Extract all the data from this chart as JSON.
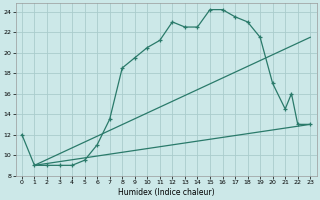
{
  "background_color": "#cce8e8",
  "grid_color": "#aacccc",
  "line_color": "#2a7a6a",
  "xlabel": "Humidex (Indice chaleur)",
  "xlim": [
    -0.5,
    23.5
  ],
  "ylim": [
    8,
    24.8
  ],
  "xticks": [
    0,
    1,
    2,
    3,
    4,
    5,
    6,
    7,
    8,
    9,
    10,
    11,
    12,
    13,
    14,
    15,
    16,
    17,
    18,
    19,
    20,
    21,
    22,
    23
  ],
  "yticks": [
    8,
    10,
    12,
    14,
    16,
    18,
    20,
    22,
    24
  ],
  "curve1_x": [
    0,
    1,
    2,
    3,
    4,
    5,
    6,
    7,
    8,
    9,
    10,
    11,
    12,
    13,
    14,
    15,
    16,
    17,
    18,
    19,
    20,
    21,
    21.5,
    22,
    23
  ],
  "curve1_y": [
    12,
    9,
    9,
    9,
    9,
    9.5,
    11,
    13.5,
    18.5,
    19.5,
    20.5,
    21.2,
    23,
    22.5,
    22.5,
    24.2,
    24.2,
    23.5,
    23,
    21.5,
    17,
    14.5,
    16,
    13,
    13
  ],
  "curve2_x": [
    1,
    23
  ],
  "curve2_y": [
    9,
    13
  ],
  "curve3_x": [
    1,
    23
  ],
  "curve3_y": [
    9,
    21.5
  ],
  "figsize": [
    3.2,
    2.0
  ],
  "dpi": 100
}
